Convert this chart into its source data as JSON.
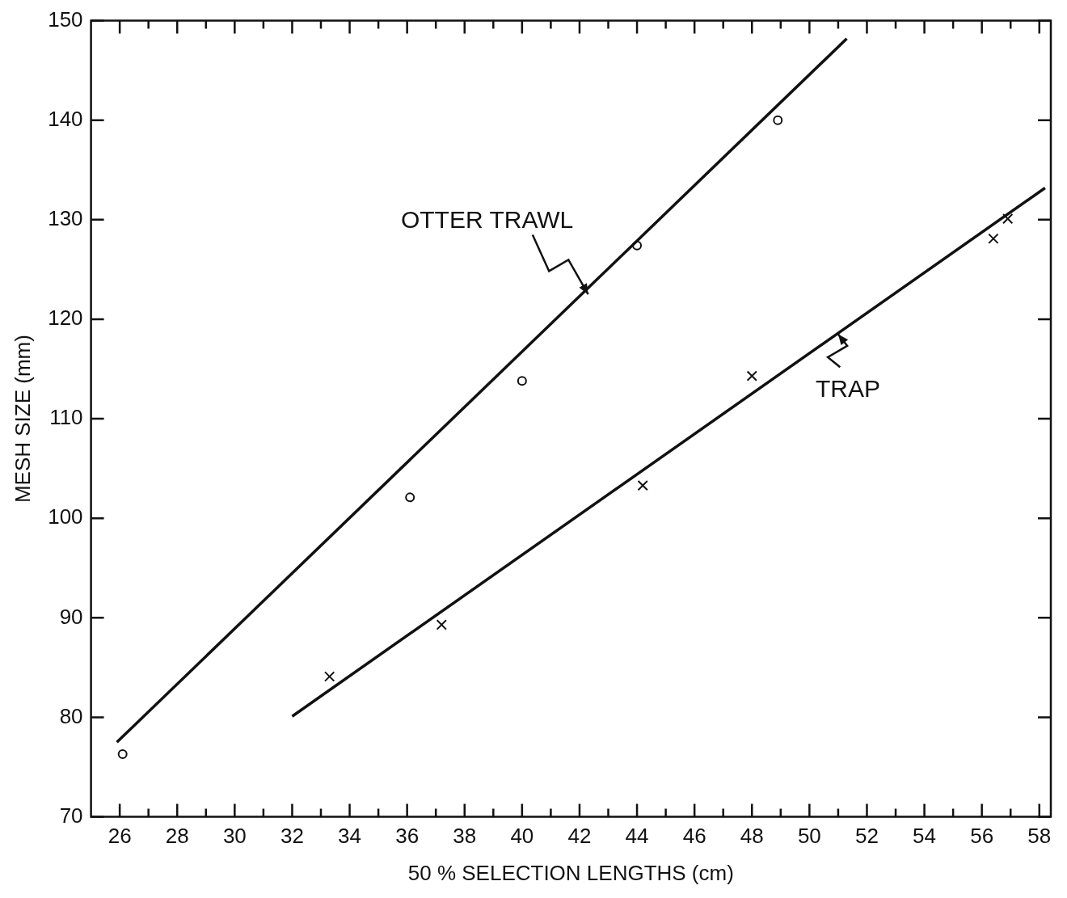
{
  "chart_data": {
    "type": "scatter",
    "xlabel": "50 % SELECTION LENGTHS (cm)",
    "ylabel": "MESH SIZE (mm)",
    "xlim": [
      25,
      58.4
    ],
    "ylim": [
      70,
      150
    ],
    "xticks": [
      26,
      {
        "value": 27,
        "label": null
      },
      28,
      {
        "value": 29,
        "label": null
      },
      30,
      {
        "value": 31,
        "label": null
      },
      32,
      {
        "value": 33,
        "label": null
      },
      34,
      {
        "value": 35,
        "label": null
      },
      36,
      {
        "value": 37,
        "label": null
      },
      38,
      {
        "value": 39,
        "label": null
      },
      40,
      {
        "value": 41,
        "label": null
      },
      42,
      {
        "value": 43,
        "label": null
      },
      44,
      {
        "value": 45,
        "label": null
      },
      46,
      {
        "value": 47,
        "label": null
      },
      48,
      {
        "value": 49,
        "label": null
      },
      50,
      {
        "value": 51,
        "label": null
      },
      52,
      {
        "value": 53,
        "label": null
      },
      54,
      {
        "value": 55,
        "label": null
      },
      56,
      {
        "value": 57,
        "label": null
      },
      58
    ],
    "yticks": [
      70,
      80,
      90,
      100,
      110,
      120,
      130,
      140,
      150
    ],
    "grid": false,
    "legend": false,
    "series": [
      {
        "marker": "circle",
        "color": "#111111",
        "x": [
          26.1,
          36.1,
          40,
          44,
          48.9
        ],
        "values": [
          76.3,
          102.1,
          113.8,
          127.4,
          140
        ]
      },
      {
        "type": "line",
        "marker": "none",
        "color": "#111111",
        "x": [
          25.9,
          51.3
        ],
        "values": [
          77.5,
          148.2
        ]
      },
      {
        "marker": "cross",
        "color": "#111111",
        "x": [
          33.3,
          37.2,
          44.2,
          48,
          56.4,
          56.9
        ],
        "values": [
          84.1,
          89.3,
          103.3,
          114.3,
          128.1,
          130.1
        ]
      },
      {
        "type": "line",
        "marker": "none",
        "color": "#111111",
        "x": [
          32,
          58.2
        ],
        "values": [
          80.1,
          133.2
        ]
      }
    ],
    "annotations": [
      {
        "text": "OTTER TRAWL",
        "x": 42.3,
        "y": 122.5
      },
      {
        "text": "TRAP",
        "x": 51,
        "y": 118.5
      }
    ]
  }
}
